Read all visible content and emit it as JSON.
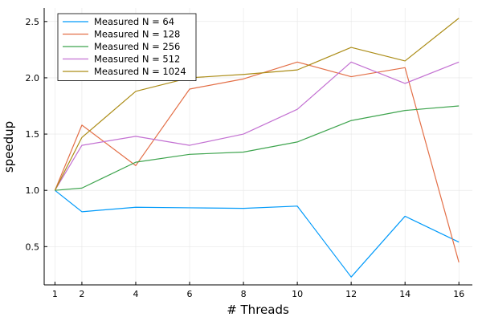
{
  "chart_data": {
    "type": "line",
    "title": "",
    "xlabel": "# Threads",
    "ylabel": "speedup",
    "x": [
      1,
      2,
      4,
      6,
      8,
      10,
      12,
      14,
      16
    ],
    "xticks": [
      1,
      2,
      4,
      6,
      8,
      10,
      12,
      14,
      16
    ],
    "yticks": [
      0.5,
      1.0,
      1.5,
      2.0,
      2.5
    ],
    "ytick_labels": [
      "0.5",
      "1.0",
      "1.5",
      "2.0",
      "2.5"
    ],
    "xlim": [
      0.6,
      16.5
    ],
    "ylim": [
      0.16,
      2.62
    ],
    "grid": true,
    "legend_position": "top-left",
    "series": [
      {
        "name": "Measured N = 64",
        "color": "#009AFA",
        "values": [
          1.0,
          0.81,
          0.85,
          0.845,
          0.84,
          0.86,
          0.23,
          0.77,
          0.54
        ]
      },
      {
        "name": "Measured N = 128",
        "color": "#E36F47",
        "values": [
          1.0,
          1.58,
          1.22,
          1.9,
          1.99,
          2.14,
          2.01,
          2.09,
          0.36
        ]
      },
      {
        "name": "Measured N = 256",
        "color": "#3EA44E",
        "values": [
          1.0,
          1.02,
          1.25,
          1.32,
          1.34,
          1.43,
          1.62,
          1.71,
          1.75
        ]
      },
      {
        "name": "Measured N = 512",
        "color": "#C371D2",
        "values": [
          1.0,
          1.4,
          1.48,
          1.4,
          1.5,
          1.72,
          2.14,
          1.95,
          2.14
        ]
      },
      {
        "name": "Measured N = 1024",
        "color": "#AC8D18",
        "values": [
          1.0,
          1.47,
          1.88,
          2.0,
          2.03,
          2.07,
          2.27,
          2.15,
          2.53
        ]
      }
    ]
  }
}
